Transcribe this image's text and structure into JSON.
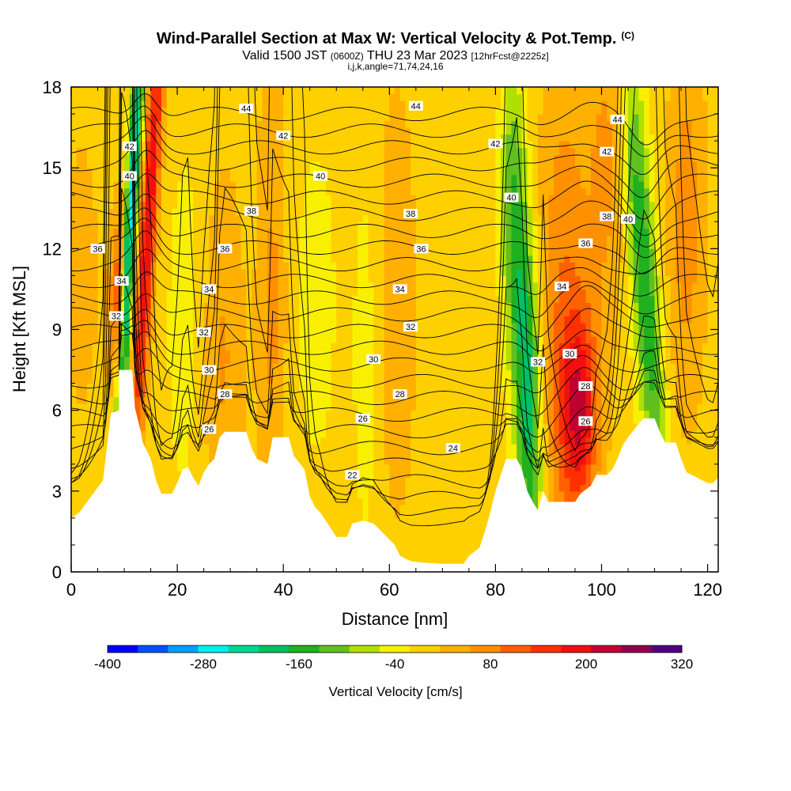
{
  "header": {
    "title": "Wind-Parallel Section at Max W: Vertical Velocity & Pot.Temp.",
    "title_unit": "(C)",
    "valid_prefix": "Valid 1500 JST",
    "valid_utc": "(0600Z)",
    "valid_date": "THU 23 Mar 2023",
    "valid_fcst": "[12hrFcst@2225z]",
    "index_line": "i,j,k,angle=71,74,24,16"
  },
  "chart_data": {
    "type": "heatmap",
    "xlabel": "Distance [nm]",
    "ylabel": "Height [Kft MSL]",
    "xlim": [
      0,
      122
    ],
    "ylim": [
      0,
      18
    ],
    "x_ticks": [
      "0",
      "20",
      "40",
      "60",
      "80",
      "100",
      "120"
    ],
    "y_ticks": [
      "0",
      "3",
      "6",
      "9",
      "12",
      "15",
      "18"
    ],
    "colorbar": {
      "title": "Vertical Velocity [cm/s]",
      "tick_labels": [
        "-400",
        "-280",
        "-160",
        "-40",
        "80",
        "200",
        "320"
      ],
      "min": -400,
      "max": 320,
      "step": 40,
      "colors": [
        "#0000ff",
        "#0050ff",
        "#00a0ff",
        "#00f0f0",
        "#00d890",
        "#00c060",
        "#20b020",
        "#60c020",
        "#b0e000",
        "#f8f000",
        "#ffd000",
        "#ffb000",
        "#ff9000",
        "#ff6000",
        "#ff3000",
        "#f01010",
        "#c00030",
        "#900050",
        "#500080"
      ]
    },
    "terrain_profile": [
      [
        0,
        2
      ],
      [
        1.5,
        2.2
      ],
      [
        3,
        2.6
      ],
      [
        4.5,
        3
      ],
      [
        6,
        3.4
      ],
      [
        7.5,
        5.9
      ],
      [
        9,
        6
      ],
      [
        9,
        7.5
      ],
      [
        11.5,
        7.5
      ],
      [
        12,
        6.1
      ],
      [
        13,
        5.3
      ],
      [
        13.5,
        4.8
      ],
      [
        15,
        4.2
      ],
      [
        16,
        3.4
      ],
      [
        17,
        2.9
      ],
      [
        19,
        2.9
      ],
      [
        20,
        3.3
      ],
      [
        21,
        3.8
      ],
      [
        22,
        3.9
      ],
      [
        23,
        3.5
      ],
      [
        24,
        3.2
      ],
      [
        25,
        3.7
      ],
      [
        26,
        4
      ],
      [
        27,
        4.2
      ],
      [
        28,
        5
      ],
      [
        29,
        5.2
      ],
      [
        33,
        5.2
      ],
      [
        34,
        4.6
      ],
      [
        35,
        4.2
      ],
      [
        37,
        4
      ],
      [
        38,
        5
      ],
      [
        41,
        5
      ],
      [
        42,
        4.3
      ],
      [
        44,
        3.8
      ],
      [
        45,
        2.8
      ],
      [
        46,
        2.4
      ],
      [
        47,
        2.2
      ],
      [
        48,
        1.9
      ],
      [
        49,
        1.6
      ],
      [
        50,
        1.3
      ],
      [
        52,
        1.3
      ],
      [
        53,
        1.8
      ],
      [
        55,
        1.9
      ],
      [
        57,
        1.8
      ],
      [
        59,
        1.4
      ],
      [
        61,
        1
      ],
      [
        62,
        0.6
      ],
      [
        64,
        0.4
      ],
      [
        66,
        0.35
      ],
      [
        70,
        0.3
      ],
      [
        74,
        0.3
      ],
      [
        75,
        0.6
      ],
      [
        77,
        0.9
      ],
      [
        78,
        1.5
      ],
      [
        79,
        2.2
      ],
      [
        80,
        3
      ],
      [
        81,
        3.6
      ],
      [
        82,
        4.2
      ],
      [
        84,
        4.2
      ],
      [
        85,
        3.8
      ],
      [
        86,
        3
      ],
      [
        87,
        2.6
      ],
      [
        88,
        2.3
      ],
      [
        89,
        3
      ],
      [
        90,
        2.6
      ],
      [
        95,
        2.6
      ],
      [
        96,
        2.9
      ],
      [
        98,
        3.2
      ],
      [
        99,
        3.6
      ],
      [
        101,
        3.6
      ],
      [
        102,
        3.8
      ],
      [
        103,
        4.2
      ],
      [
        104,
        4.7
      ],
      [
        105,
        5
      ],
      [
        107,
        5.5
      ],
      [
        108,
        5.7
      ],
      [
        110,
        5.7
      ],
      [
        111,
        5.2
      ],
      [
        112,
        4.8
      ],
      [
        114,
        4.8
      ],
      [
        115,
        4.2
      ],
      [
        116,
        3.7
      ],
      [
        118,
        3.5
      ],
      [
        119,
        3.4
      ],
      [
        120,
        3.3
      ],
      [
        121,
        3.3
      ],
      [
        122,
        3.5
      ]
    ],
    "w_features": [
      {
        "x": 2,
        "y": 11,
        "sx": 2.5,
        "sy": 4,
        "w": 40
      },
      {
        "x": 9,
        "y": 10,
        "sx": 1.2,
        "sy": 2.5,
        "w": 150,
        "tilt": 0.12
      },
      {
        "x": 11,
        "y": 12,
        "sx": 0.9,
        "sy": 7,
        "w": -300,
        "tilt": 0.28
      },
      {
        "x": 14.5,
        "y": 13,
        "sx": 1.2,
        "sy": 7,
        "w": 220,
        "tilt": 0.3
      },
      {
        "x": 23,
        "y": 9,
        "sx": 4,
        "sy": 6,
        "w": -40
      },
      {
        "x": 28,
        "y": 8,
        "sx": 3,
        "sy": 5,
        "w": 80
      },
      {
        "x": 38,
        "y": 10,
        "sx": 2,
        "sy": 7,
        "w": 70
      },
      {
        "x": 46,
        "y": 10,
        "sx": 4,
        "sy": 6,
        "w": -30
      },
      {
        "x": 56,
        "y": 8,
        "sx": 2,
        "sy": 6,
        "w": -40
      },
      {
        "x": 61,
        "y": 10,
        "sx": 3,
        "sy": 6,
        "w": 50
      },
      {
        "x": 86,
        "y": 7,
        "sx": 1.8,
        "sy": 5,
        "w": -220,
        "tilt": -0.15
      },
      {
        "x": 83,
        "y": 14,
        "sx": 1.5,
        "sy": 4,
        "w": -100
      },
      {
        "x": 93,
        "y": 9,
        "sx": 3.5,
        "sy": 7,
        "w": 100
      },
      {
        "x": 96,
        "y": 6,
        "sx": 2.5,
        "sy": 2.5,
        "w": 180
      },
      {
        "x": 108,
        "y": 11,
        "sx": 1.8,
        "sy": 6,
        "w": -180,
        "tilt": -0.35
      },
      {
        "x": 116,
        "y": 13,
        "sx": 2.5,
        "sy": 5,
        "w": 80
      },
      {
        "x": 101,
        "y": 15,
        "sx": 2.5,
        "sy": 4,
        "w": 70
      }
    ],
    "theta_levels": [
      20,
      21,
      22,
      23,
      24,
      25,
      26,
      27,
      28,
      29,
      30,
      31,
      32,
      33,
      34,
      35,
      36,
      37,
      38,
      39,
      40,
      41,
      42,
      43,
      44,
      45
    ],
    "contour_labels": [
      {
        "text": "44",
        "x": 33,
        "y": 17.2
      },
      {
        "text": "44",
        "x": 65,
        "y": 17.3
      },
      {
        "text": "44",
        "x": 103,
        "y": 16.8
      },
      {
        "text": "42",
        "x": 11,
        "y": 15.8
      },
      {
        "text": "42",
        "x": 40,
        "y": 16.2
      },
      {
        "text": "42",
        "x": 80,
        "y": 15.9
      },
      {
        "text": "42",
        "x": 101,
        "y": 15.6
      },
      {
        "text": "40",
        "x": 11,
        "y": 14.7
      },
      {
        "text": "40",
        "x": 47,
        "y": 14.7
      },
      {
        "text": "40",
        "x": 83,
        "y": 13.9
      },
      {
        "text": "40",
        "x": 105,
        "y": 13.1
      },
      {
        "text": "38",
        "x": 34,
        "y": 13.4
      },
      {
        "text": "38",
        "x": 64,
        "y": 13.3
      },
      {
        "text": "38",
        "x": 101,
        "y": 13.2
      },
      {
        "text": "36",
        "x": 5,
        "y": 12
      },
      {
        "text": "36",
        "x": 29,
        "y": 12
      },
      {
        "text": "36",
        "x": 66,
        "y": 12
      },
      {
        "text": "36",
        "x": 97,
        "y": 12.2
      },
      {
        "text": "34",
        "x": 9.5,
        "y": 10.8
      },
      {
        "text": "34",
        "x": 26,
        "y": 10.5
      },
      {
        "text": "34",
        "x": 62,
        "y": 10.5
      },
      {
        "text": "34",
        "x": 92.5,
        "y": 10.6
      },
      {
        "text": "32",
        "x": 8.5,
        "y": 9.5
      },
      {
        "text": "32",
        "x": 25,
        "y": 8.9
      },
      {
        "text": "32",
        "x": 64,
        "y": 9.1
      },
      {
        "text": "32",
        "x": 88,
        "y": 7.8
      },
      {
        "text": "30",
        "x": 26,
        "y": 7.5
      },
      {
        "text": "30",
        "x": 57,
        "y": 7.9
      },
      {
        "text": "30",
        "x": 94,
        "y": 8.1
      },
      {
        "text": "28",
        "x": 29,
        "y": 6.6
      },
      {
        "text": "28",
        "x": 62,
        "y": 6.6
      },
      {
        "text": "28",
        "x": 97,
        "y": 6.9
      },
      {
        "text": "26",
        "x": 26,
        "y": 5.3
      },
      {
        "text": "26",
        "x": 55,
        "y": 5.7
      },
      {
        "text": "26",
        "x": 97,
        "y": 5.6
      },
      {
        "text": "24",
        "x": 72,
        "y": 4.6
      },
      {
        "text": "22",
        "x": 53,
        "y": 3.6
      }
    ]
  }
}
